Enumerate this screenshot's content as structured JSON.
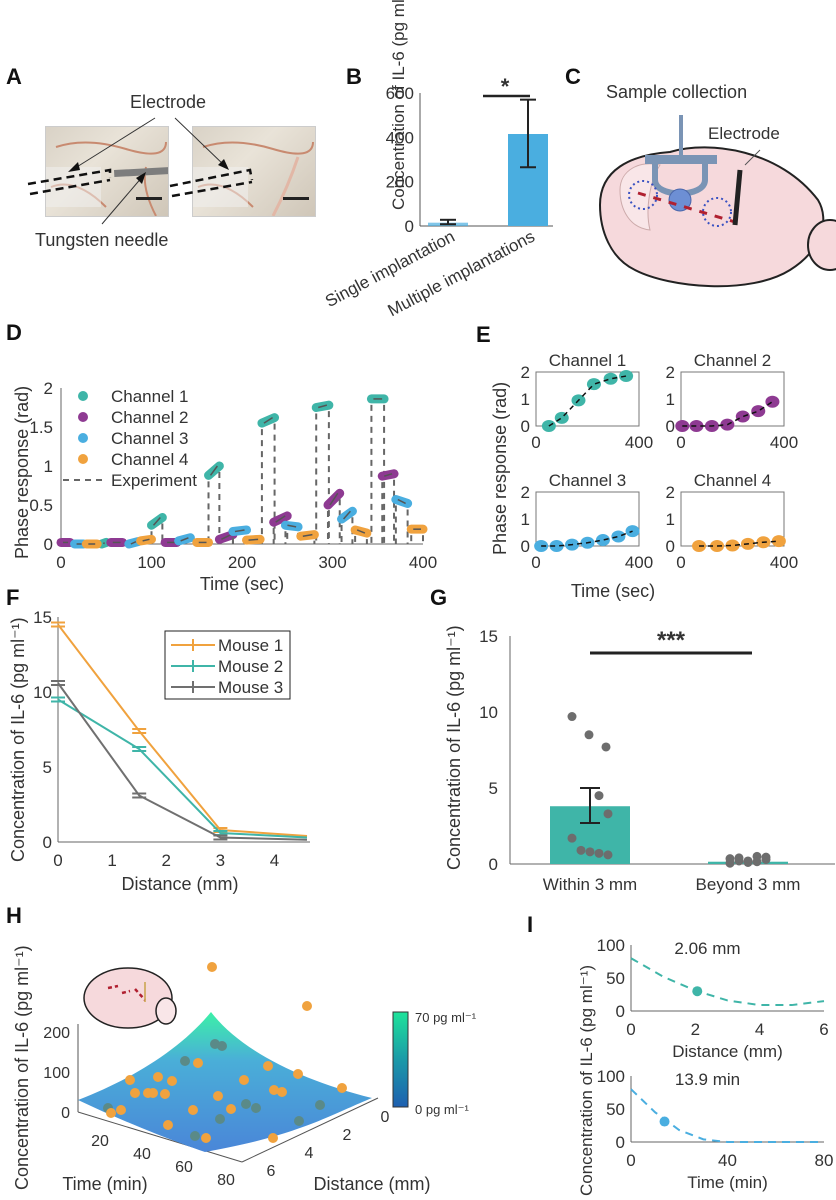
{
  "panels": {
    "A": {
      "letter": "A",
      "labels": {
        "electrode": "Electrode",
        "needle": "Tungsten needle"
      }
    },
    "B": {
      "letter": "B"
    },
    "C": {
      "letter": "C",
      "labels": {
        "sample": "Sample collection",
        "electrode": "Electrode"
      }
    },
    "D": {
      "letter": "D"
    },
    "E": {
      "letter": "E"
    },
    "F": {
      "letter": "F"
    },
    "G": {
      "letter": "G"
    },
    "H": {
      "letter": "H"
    },
    "I": {
      "letter": "I"
    }
  },
  "chart_data": [
    {
      "id": "B",
      "type": "bar",
      "categories": [
        "Single implantation",
        "Multiple implantations"
      ],
      "values": [
        15,
        415
      ],
      "errors": [
        [
          8,
          28
        ],
        [
          265,
          570
        ]
      ],
      "ylabel": "Concentration of IL-6 (pg ml⁻¹)",
      "yticks": [
        0,
        200,
        400,
        600
      ],
      "ylim": [
        0,
        600
      ],
      "significance": "*",
      "colors": [
        "#4aaee0",
        "#4aaee0"
      ]
    },
    {
      "id": "D",
      "type": "scatter",
      "xlabel": "Time (sec)",
      "ylabel": "Phase response (rad)",
      "xlim": [
        0,
        400
      ],
      "ylim": [
        0,
        2
      ],
      "xticks": [
        0,
        100,
        200,
        300,
        400
      ],
      "yticks": [
        0,
        0.5,
        1,
        1.5,
        2
      ],
      "legend": [
        "Channel 1",
        "Channel 2",
        "Channel 3",
        "Channel 4",
        "Experiment"
      ],
      "legend_position": "top-left",
      "series": [
        {
          "name": "Channel 1",
          "color": "#3fb5a8",
          "segments": [
            [
              45,
              0
            ],
            [
              50,
              0.02
            ],
            [
              100,
              0.24
            ],
            [
              112,
              0.34
            ],
            [
              163,
              0.88
            ],
            [
              175,
              1.0
            ],
            [
              222,
              1.55
            ],
            [
              236,
              1.62
            ],
            [
              282,
              1.75
            ],
            [
              296,
              1.78
            ],
            [
              343,
              1.86
            ],
            [
              357,
              1.86
            ]
          ]
        },
        {
          "name": "Channel 2",
          "color": "#8e3a92",
          "segments": [
            [
              0,
              0.02
            ],
            [
              10,
              0.02
            ],
            [
              55,
              0.02
            ],
            [
              68,
              0.02
            ],
            [
              115,
              0.02
            ],
            [
              128,
              0.02
            ],
            [
              175,
              0.06
            ],
            [
              190,
              0.12
            ],
            [
              235,
              0.28
            ],
            [
              250,
              0.36
            ],
            [
              295,
              0.5
            ],
            [
              308,
              0.65
            ],
            [
              355,
              0.87
            ],
            [
              368,
              0.9
            ]
          ]
        },
        {
          "name": "Channel 3",
          "color": "#4aaee0",
          "segments": [
            [
              15,
              0
            ],
            [
              25,
              0
            ],
            [
              75,
              0
            ],
            [
              85,
              0.03
            ],
            [
              130,
              0.04
            ],
            [
              143,
              0.08
            ],
            [
              190,
              0.16
            ],
            [
              205,
              0.18
            ],
            [
              248,
              0.24
            ],
            [
              262,
              0.22
            ],
            [
              310,
              0.32
            ],
            [
              322,
              0.42
            ],
            [
              370,
              0.57
            ],
            [
              383,
              0.52
            ]
          ]
        },
        {
          "name": "Channel 4",
          "color": "#f0a23e",
          "segments": [
            [
              28,
              0
            ],
            [
              40,
              0
            ],
            [
              88,
              0.04
            ],
            [
              100,
              0.06
            ],
            [
              150,
              0.02
            ],
            [
              163,
              0.02
            ],
            [
              205,
              0.05
            ],
            [
              220,
              0.06
            ],
            [
              265,
              0.1
            ],
            [
              280,
              0.12
            ],
            [
              325,
              0.18
            ],
            [
              338,
              0.14
            ],
            [
              387,
              0.19
            ],
            [
              400,
              0.19
            ]
          ]
        }
      ]
    },
    {
      "id": "E",
      "type": "scatter",
      "xlabel": "Time (sec)",
      "ylabel": "Phase response (rad)",
      "subplots": [
        {
          "title": "Channel 1",
          "color": "#3fb5a8",
          "x": [
            50,
            100,
            165,
            225,
            290,
            350
          ],
          "y": [
            0,
            0.3,
            0.95,
            1.55,
            1.75,
            1.85
          ]
        },
        {
          "title": "Channel 2",
          "color": "#8e3a92",
          "x": [
            5,
            60,
            120,
            180,
            240,
            300,
            355
          ],
          "y": [
            0,
            0,
            0,
            0.05,
            0.35,
            0.55,
            0.9
          ]
        },
        {
          "title": "Channel 3",
          "color": "#4aaee0",
          "x": [
            20,
            80,
            140,
            200,
            260,
            320,
            375
          ],
          "y": [
            0,
            0,
            0.05,
            0.12,
            0.22,
            0.35,
            0.55
          ]
        },
        {
          "title": "Channel 4",
          "color": "#f0a23e",
          "x": [
            70,
            140,
            200,
            260,
            320,
            380
          ],
          "y": [
            0,
            0,
            0.02,
            0.08,
            0.14,
            0.18
          ]
        }
      ],
      "xlim": [
        0,
        400
      ],
      "ylim": [
        0,
        2
      ],
      "xticks": [
        0,
        400
      ],
      "yticks": [
        0,
        1,
        2
      ]
    },
    {
      "id": "F",
      "type": "line",
      "xlabel": "Distance (mm)",
      "ylabel": "Concentration of IL-6 (pg ml⁻¹)",
      "xlim": [
        0,
        4.6
      ],
      "ylim": [
        0,
        15
      ],
      "xticks": [
        0,
        1,
        2,
        3,
        4
      ],
      "yticks": [
        0,
        5,
        10,
        15
      ],
      "legend_position": "top-right",
      "x": [
        0,
        1.5,
        3,
        4.6
      ],
      "series": [
        {
          "name": "Mouse 1",
          "color": "#f0a23e",
          "values": [
            14.5,
            7.4,
            0.8,
            0.4
          ]
        },
        {
          "name": "Mouse 2",
          "color": "#3fb5a8",
          "values": [
            9.5,
            6.2,
            0.6,
            0.3
          ]
        },
        {
          "name": "Mouse 3",
          "color": "#707070",
          "values": [
            10.6,
            3.1,
            0.3,
            0.15
          ]
        }
      ]
    },
    {
      "id": "G",
      "type": "bar",
      "categories": [
        "Within 3 mm",
        "Beyond 3 mm"
      ],
      "values": [
        3.8,
        0.15
      ],
      "errors": [
        [
          2.7,
          5.0
        ],
        [
          0.1,
          0.2
        ]
      ],
      "ylabel": "Concentration of IL-6 (pg ml⁻¹)",
      "ylim": [
        0,
        15
      ],
      "yticks": [
        0,
        5,
        10,
        15
      ],
      "significance": "***",
      "bar_color": "#3fb5a8",
      "points": [
        [
          9.7,
          8.5,
          7.7,
          4.5,
          3.3,
          1.7,
          0.9,
          0.8,
          0.7,
          0.6
        ],
        [
          0.35,
          0.2,
          0.1,
          0.5,
          0.3,
          0.05,
          0.4,
          0.2,
          0.15,
          0.45
        ]
      ]
    },
    {
      "id": "H",
      "type": "scatter",
      "xlabel": "Time (min)",
      "ylabel": "Concentration of IL-6 (pg ml⁻¹)",
      "zlabel": "Distance (mm)",
      "xticks": [
        20,
        40,
        60,
        80
      ],
      "zticks": [
        0,
        2,
        4,
        6
      ],
      "yticks": [
        0,
        100,
        200
      ],
      "colorbar": {
        "min_label": "0 pg ml⁻¹",
        "max_label": "70 pg ml⁻¹",
        "min": 0,
        "max": 70
      }
    },
    {
      "id": "I-top",
      "type": "line",
      "title": "2.06 mm",
      "xlabel": "Distance (mm)",
      "xlim": [
        0,
        6
      ],
      "ylim": [
        0,
        100
      ],
      "xticks": [
        0,
        2,
        4,
        6
      ],
      "yticks": [
        0,
        50,
        100
      ],
      "color": "#3fb5a8",
      "curve": {
        "x": [
          0,
          1,
          2,
          3,
          4,
          5,
          6
        ],
        "y": [
          80,
          52,
          31,
          16,
          9,
          9,
          15
        ]
      },
      "point": {
        "x": 2.06,
        "y": 30
      }
    },
    {
      "id": "I-bottom",
      "type": "line",
      "title": "13.9 min",
      "xlabel": "Time (min)",
      "xlim": [
        0,
        80
      ],
      "ylim": [
        0,
        100
      ],
      "xticks": [
        0,
        40,
        80
      ],
      "yticks": [
        0,
        50,
        100
      ],
      "color": "#4aaee0",
      "curve": {
        "x": [
          0,
          10,
          20,
          30,
          40,
          50,
          60,
          70,
          80
        ],
        "y": [
          80,
          45,
          18,
          4,
          0,
          0,
          0,
          0,
          0
        ]
      },
      "point": {
        "x": 13.9,
        "y": 31
      }
    },
    {
      "id": "I",
      "ylabel": "Concentration of IL-6 (pg ml⁻¹)"
    }
  ]
}
